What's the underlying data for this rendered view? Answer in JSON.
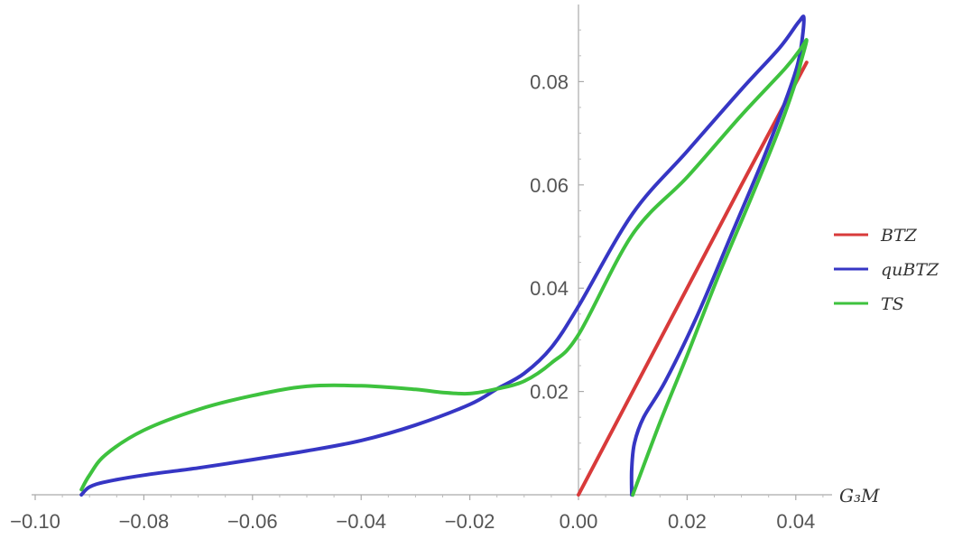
{
  "chart_data": {
    "type": "line",
    "title": "",
    "xlabel": "G₃M",
    "ylabel": "",
    "xlim": [
      -0.102,
      0.045
    ],
    "ylim": [
      0,
      0.095
    ],
    "grid": false,
    "legend_position": "right",
    "x_ticks": [
      {
        "value": -0.1,
        "label": "−0.10"
      },
      {
        "value": -0.08,
        "label": "−0.08"
      },
      {
        "value": -0.06,
        "label": "−0.06"
      },
      {
        "value": -0.04,
        "label": "−0.04"
      },
      {
        "value": -0.02,
        "label": "−0.02"
      },
      {
        "value": 0.0,
        "label": "0.00"
      },
      {
        "value": 0.02,
        "label": "0.02"
      },
      {
        "value": 0.04,
        "label": "0.04"
      }
    ],
    "y_ticks": [
      {
        "value": 0.02,
        "label": "0.02"
      },
      {
        "value": 0.04,
        "label": "0.04"
      },
      {
        "value": 0.06,
        "label": "0.06"
      },
      {
        "value": 0.08,
        "label": "0.08"
      }
    ],
    "series": [
      {
        "name": "BTZ",
        "color": "#d83a3a",
        "x": [
          0.0,
          0.01,
          0.02,
          0.03,
          0.042
        ],
        "y": [
          0.0,
          0.02,
          0.04,
          0.06,
          0.0837
        ]
      },
      {
        "name": "quBTZ",
        "color": "#3636c4",
        "x": [
          0.0098,
          0.0098,
          0.0103,
          0.012,
          0.016,
          0.022,
          0.028,
          0.034,
          0.038,
          0.0405,
          0.0415,
          0.0405,
          0.037,
          0.03,
          0.02,
          0.01,
          0.0,
          -0.005,
          -0.01,
          -0.015,
          -0.02,
          -0.03,
          -0.04,
          -0.05,
          -0.06,
          -0.07,
          -0.08,
          -0.087,
          -0.09,
          -0.0915
        ],
        "y": [
          0.0,
          0.005,
          0.01,
          0.015,
          0.022,
          0.035,
          0.05,
          0.065,
          0.076,
          0.084,
          0.092,
          0.0915,
          0.0865,
          0.0785,
          0.0665,
          0.0545,
          0.0365,
          0.0285,
          0.0235,
          0.0205,
          0.0175,
          0.0135,
          0.0105,
          0.0085,
          0.0068,
          0.0052,
          0.0038,
          0.0025,
          0.0015,
          0.0
        ]
      },
      {
        "name": "TS",
        "color": "#3ec23e",
        "x": [
          0.01,
          0.015,
          0.02,
          0.026,
          0.032,
          0.037,
          0.04,
          0.041,
          0.042,
          0.041,
          0.038,
          0.03,
          0.02,
          0.01,
          0.0,
          -0.005,
          -0.01,
          -0.015,
          -0.02,
          -0.025,
          -0.03,
          -0.04,
          -0.05,
          -0.06,
          -0.07,
          -0.08,
          -0.087,
          -0.09,
          -0.0915
        ],
        "y": [
          0.0,
          0.014,
          0.027,
          0.043,
          0.058,
          0.071,
          0.08,
          0.084,
          0.088,
          0.0865,
          0.0825,
          0.0735,
          0.0615,
          0.0505,
          0.031,
          0.0255,
          0.022,
          0.0205,
          0.0196,
          0.0198,
          0.0204,
          0.0211,
          0.021,
          0.0192,
          0.0165,
          0.0125,
          0.0078,
          0.0038,
          0.001
        ]
      }
    ]
  }
}
